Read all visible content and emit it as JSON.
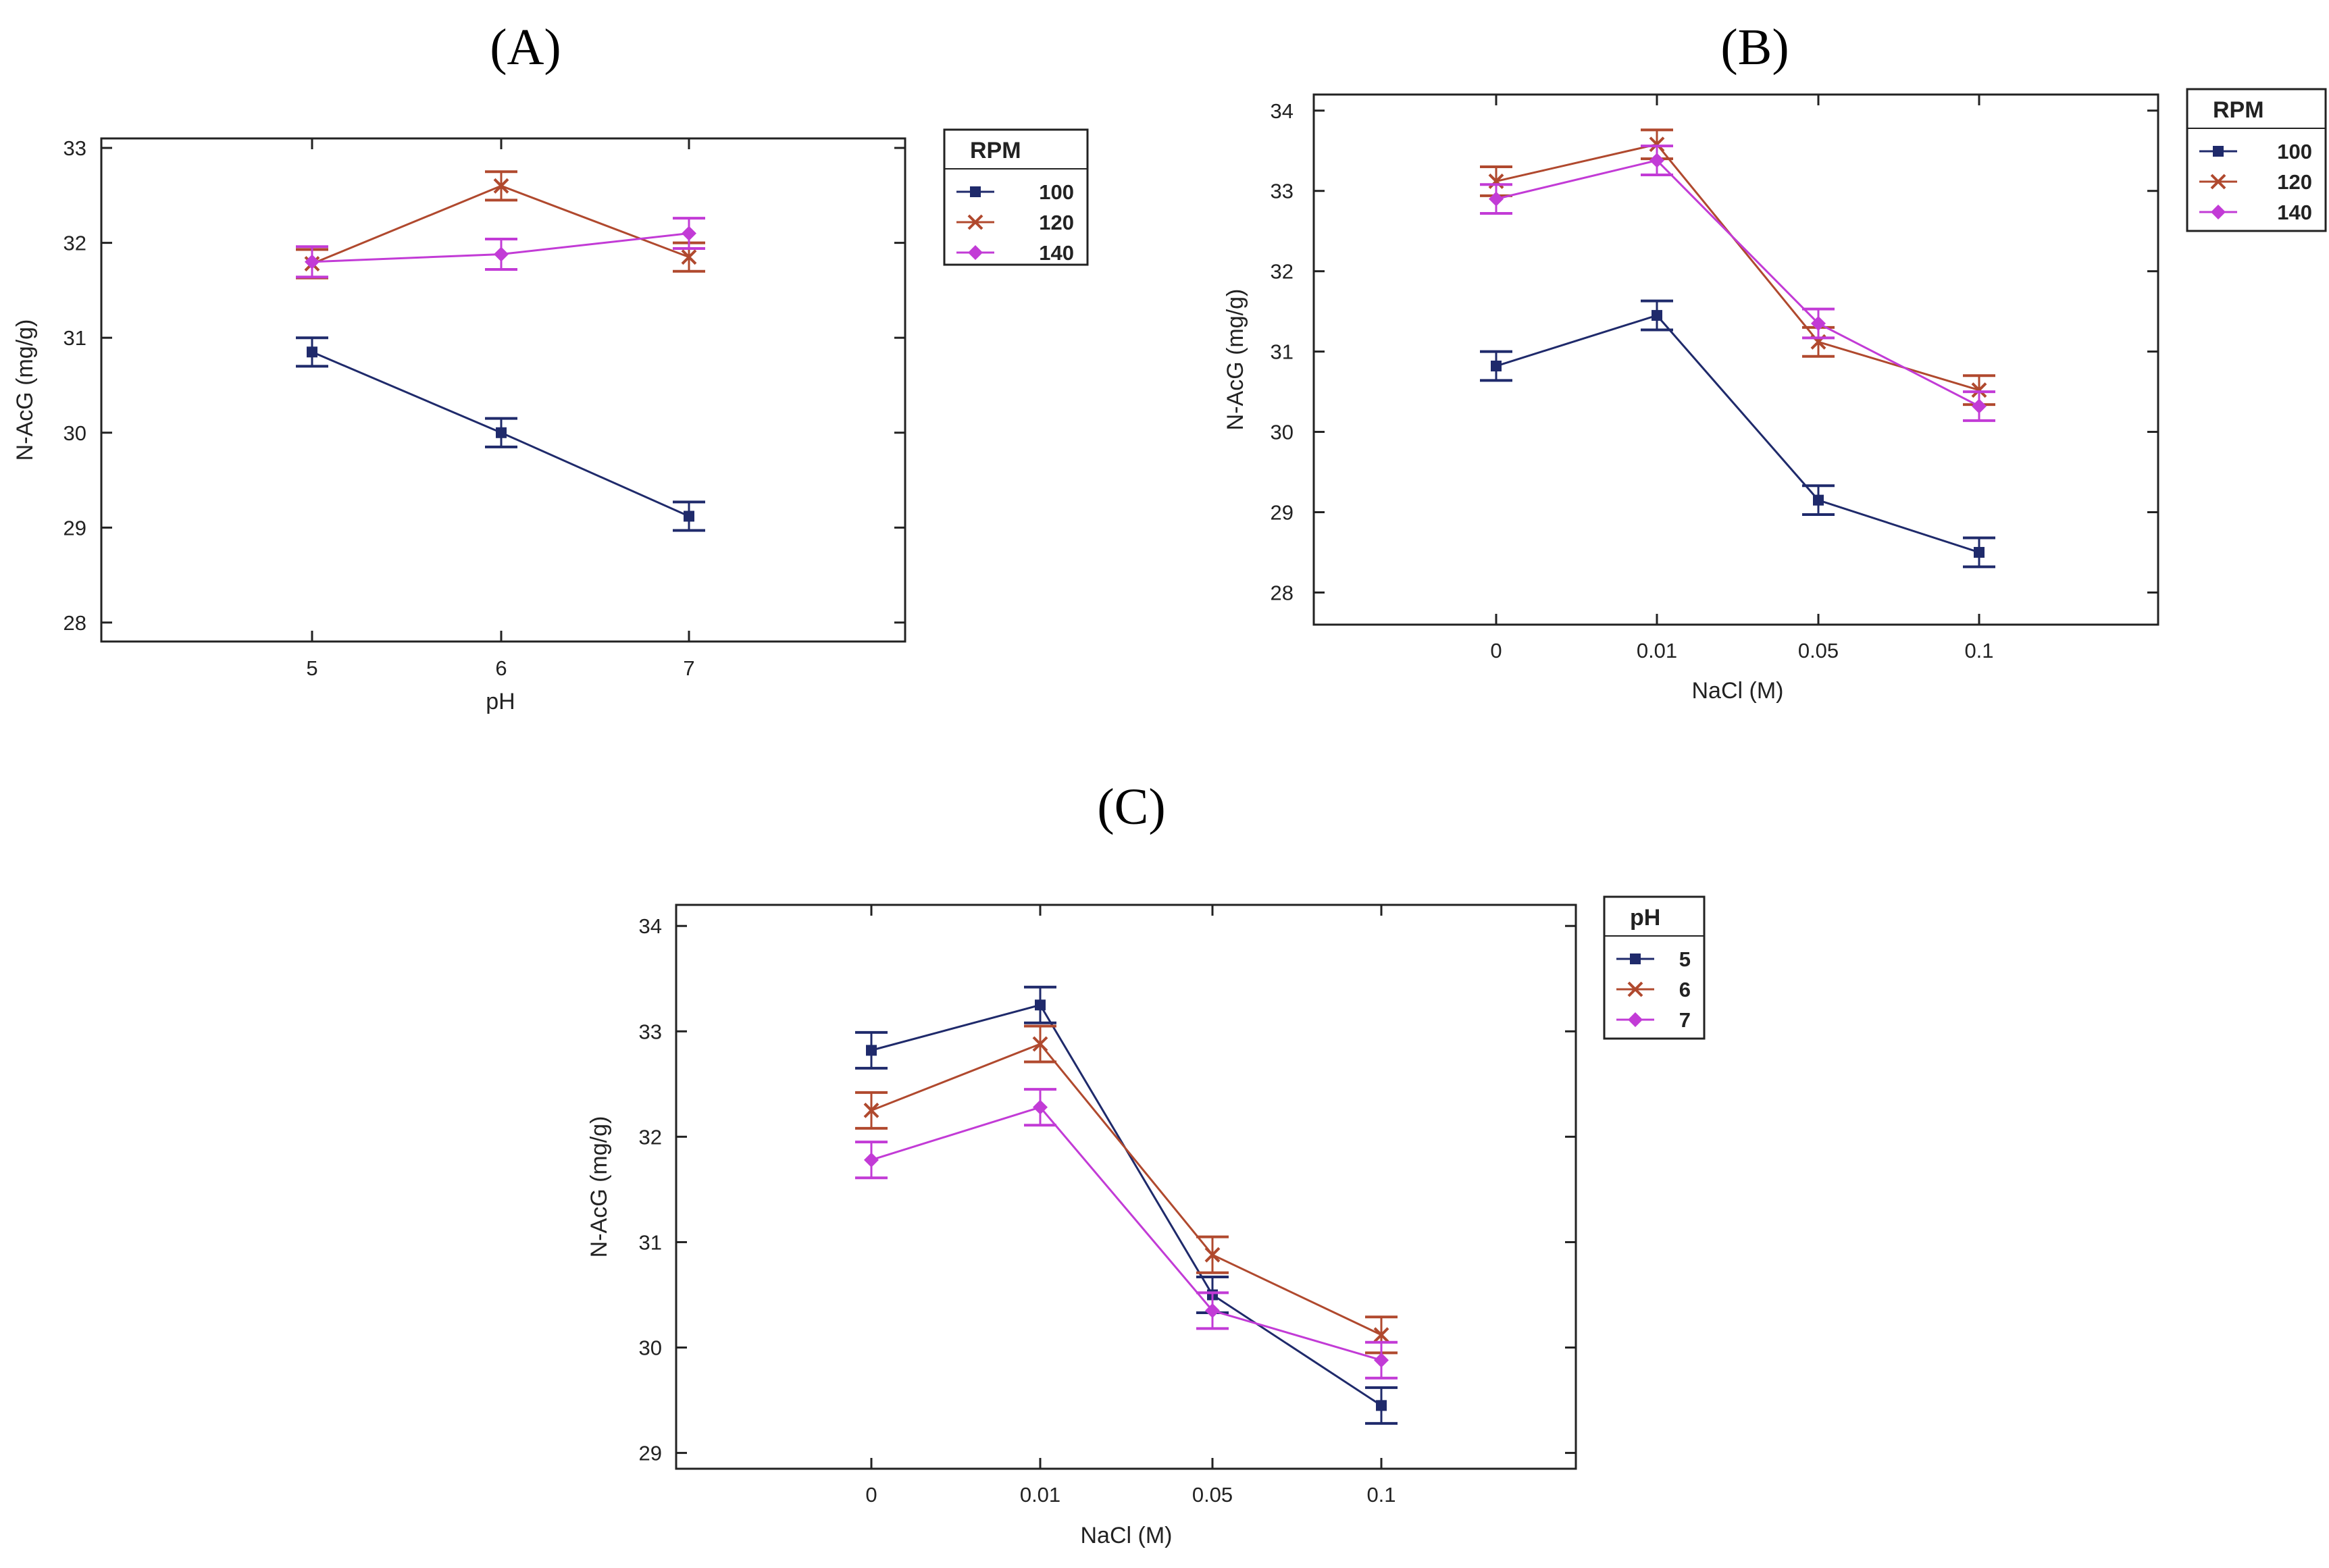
{
  "figure": {
    "colors": {
      "s100": "#1f2a6b",
      "s120": "#b0492e",
      "s140": "#c23bd6",
      "axis": "#222222"
    }
  },
  "chart_data": [
    {
      "type": "line",
      "panel": "(A)",
      "xlabel": "pH",
      "ylabel": "N-AcG (mg/g)",
      "categories": [
        "5",
        "6",
        "7"
      ],
      "ylim": [
        27.8,
        33.1
      ],
      "yticks": [
        "28",
        "29",
        "30",
        "31",
        "32",
        "33"
      ],
      "legend": {
        "title": "RPM",
        "position": "right"
      },
      "series": [
        {
          "name": "100",
          "values": [
            30.85,
            30.0,
            29.12
          ],
          "err": 0.15
        },
        {
          "name": "120",
          "values": [
            31.78,
            32.6,
            31.85
          ],
          "err": 0.15
        },
        {
          "name": "140",
          "values": [
            31.8,
            31.88,
            32.1
          ],
          "err": 0.16
        }
      ]
    },
    {
      "type": "line",
      "panel": "(B)",
      "xlabel": "NaCl (M)",
      "ylabel": "N-AcG (mg/g)",
      "categories": [
        "0",
        "0.01",
        "0.05",
        "0.1"
      ],
      "ylim": [
        27.6,
        34.2
      ],
      "yticks": [
        "28",
        "29",
        "30",
        "31",
        "32",
        "33",
        "34"
      ],
      "legend": {
        "title": "RPM",
        "position": "right"
      },
      "series": [
        {
          "name": "100",
          "values": [
            30.82,
            31.45,
            29.15,
            28.5
          ],
          "err": 0.18
        },
        {
          "name": "120",
          "values": [
            33.12,
            33.58,
            31.12,
            30.52
          ],
          "err": 0.18
        },
        {
          "name": "140",
          "values": [
            32.9,
            33.38,
            31.35,
            30.32
          ],
          "err": 0.18
        }
      ]
    },
    {
      "type": "line",
      "panel": "(C)",
      "xlabel": "NaCl (M)",
      "ylabel": "N-AcG (mg/g)",
      "categories": [
        "0",
        "0.01",
        "0.05",
        "0.1"
      ],
      "ylim": [
        28.85,
        34.2
      ],
      "yticks": [
        "29",
        "30",
        "31",
        "32",
        "33",
        "34"
      ],
      "legend": {
        "title": "pH",
        "position": "right"
      },
      "series": [
        {
          "name": "5",
          "values": [
            32.82,
            33.25,
            30.5,
            29.45
          ],
          "err": 0.17
        },
        {
          "name": "6",
          "values": [
            32.25,
            32.88,
            30.88,
            30.12
          ],
          "err": 0.17
        },
        {
          "name": "7",
          "values": [
            31.78,
            32.28,
            30.35,
            29.88
          ],
          "err": 0.17
        }
      ]
    }
  ]
}
